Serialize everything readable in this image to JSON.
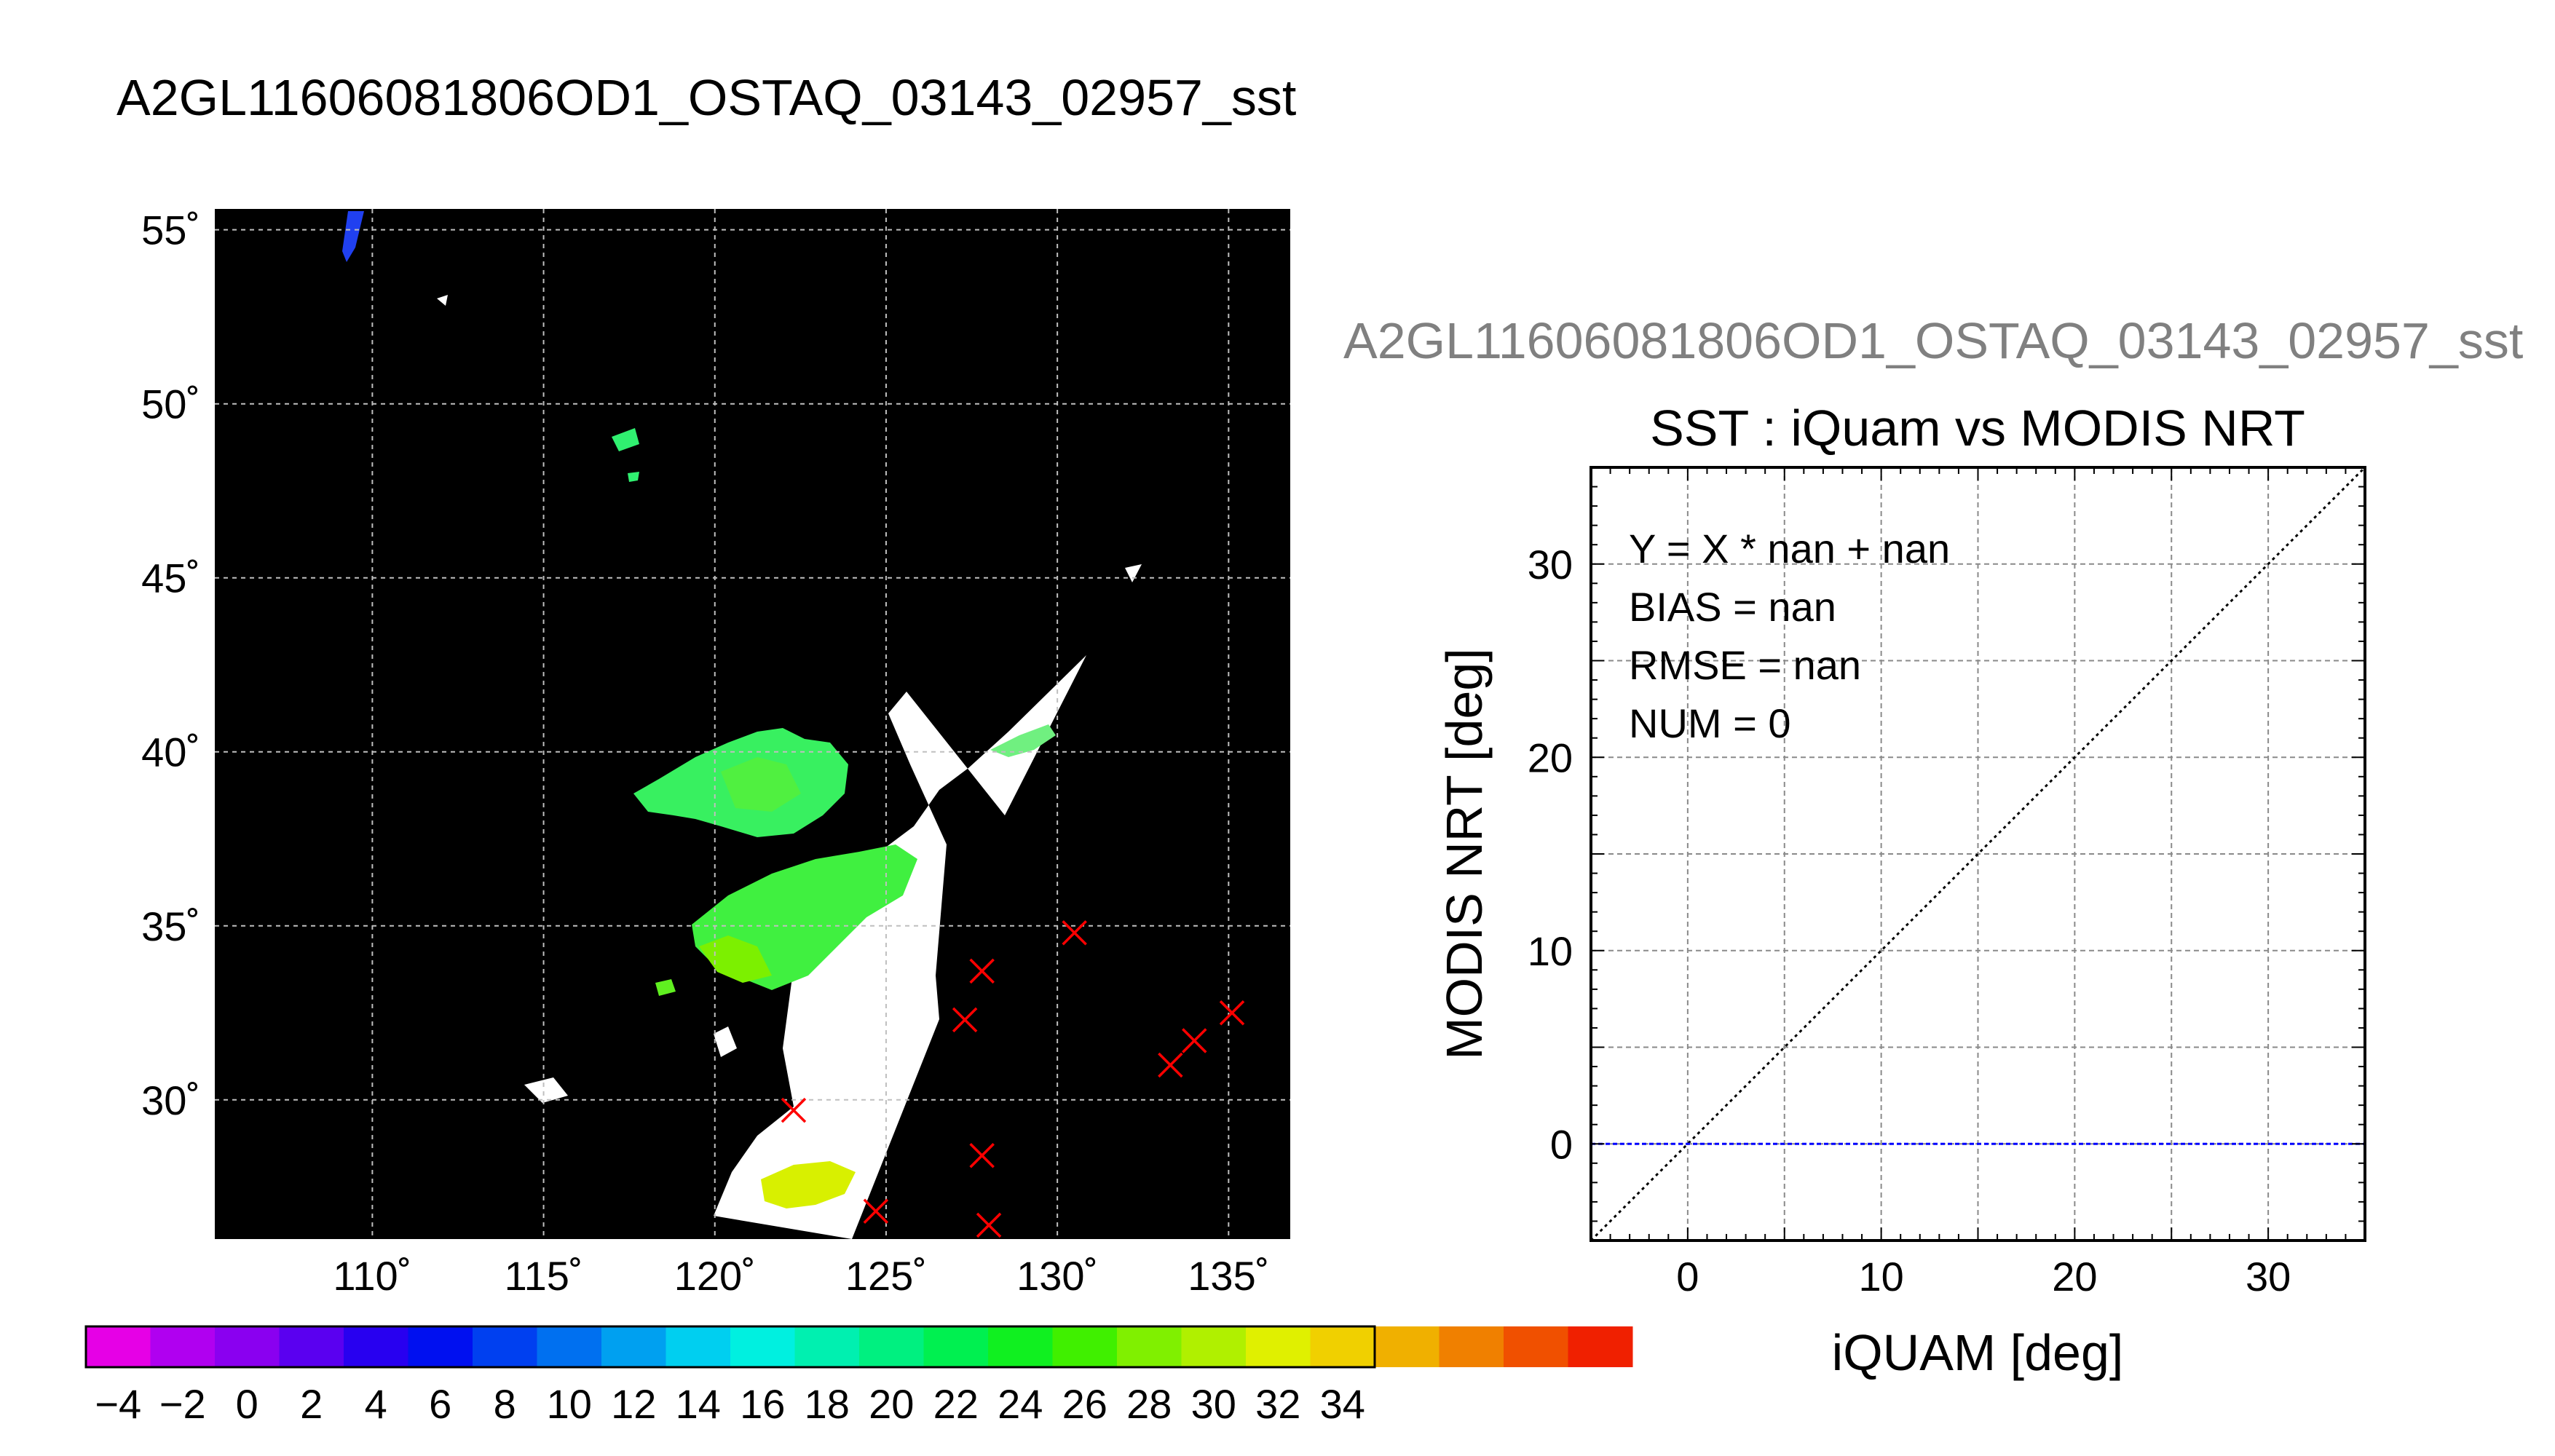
{
  "chart_data": [
    {
      "type": "heatmap",
      "title": "A2GL11606081806OD1_OSTAQ_03143_02957_sst",
      "x_ticks": [
        110,
        115,
        120,
        125,
        130,
        135
      ],
      "x_tick_labels": [
        "110˚",
        "115˚",
        "120˚",
        "125˚",
        "130˚",
        "135˚"
      ],
      "y_ticks": [
        30,
        35,
        40,
        45,
        50,
        55
      ],
      "y_tick_labels": [
        "30˚",
        "35˚",
        "40˚",
        "45˚",
        "50˚",
        "55˚"
      ],
      "xlim": [
        105.4,
        136.8
      ],
      "ylim": [
        26.0,
        55.6
      ],
      "grid": true,
      "background": "#000000",
      "swath_color": "#ffffff",
      "markers": {
        "symbol": "x",
        "color": "#ff0000",
        "points": [
          {
            "lon": 122.3,
            "lat": 29.7
          },
          {
            "lon": 124.7,
            "lat": 26.8
          },
          {
            "lon": 127.3,
            "lat": 32.3
          },
          {
            "lon": 127.8,
            "lat": 33.7
          },
          {
            "lon": 127.8,
            "lat": 28.4
          },
          {
            "lon": 128.0,
            "lat": 26.4
          },
          {
            "lon": 130.5,
            "lat": 34.8
          },
          {
            "lon": 133.3,
            "lat": 31.0
          },
          {
            "lon": 134.0,
            "lat": 31.7
          },
          {
            "lon": 135.1,
            "lat": 32.5
          }
        ]
      },
      "colorbar": {
        "min": -5,
        "max": 35,
        "step": 2,
        "tick_labels": [
          "−4",
          "−2",
          "0",
          "2",
          "4",
          "6",
          "8",
          "10",
          "12",
          "14",
          "16",
          "18",
          "20",
          "22",
          "24",
          "26",
          "28",
          "30",
          "32",
          "34"
        ],
        "colors": [
          "#e600e6",
          "#b000f0",
          "#8a00f0",
          "#5a00f0",
          "#2800f0",
          "#0010f0",
          "#0040f0",
          "#0070f0",
          "#00a0f0",
          "#00cff0",
          "#00f0e0",
          "#00f0b0",
          "#00f080",
          "#00f050",
          "#10f020",
          "#40f000",
          "#80f000",
          "#b0f000",
          "#e0f000",
          "#f0d000",
          "#f0b000",
          "#f08000",
          "#f05000",
          "#f02000"
        ]
      }
    },
    {
      "type": "scatter",
      "header": "A2GL11606081806OD1_OSTAQ_03143_02957_sst",
      "title": "SST : iQuam vs MODIS NRT",
      "xlabel": "iQUAM [deg]",
      "ylabel": "MODIS NRT [deg]",
      "xlim": [
        -5,
        35
      ],
      "ylim": [
        -5,
        35
      ],
      "x_ticks": [
        0,
        10,
        20,
        30
      ],
      "x_tick_labels": [
        "0",
        "10",
        "20",
        "30"
      ],
      "y_ticks": [
        0,
        10,
        20,
        30
      ],
      "y_tick_labels": [
        "0",
        "10",
        "20",
        "30"
      ],
      "grid": true,
      "annotations": [
        "Y = X * nan + nan",
        "BIAS = nan",
        "RMSE = nan",
        "NUM = 0"
      ],
      "reference_lines": [
        {
          "kind": "identity",
          "style": "dotted",
          "color": "#000000"
        },
        {
          "kind": "horizontal",
          "y": 0,
          "style": "dashed",
          "color": "#0000ff"
        }
      ],
      "series": [
        {
          "x": [],
          "y": []
        }
      ]
    }
  ]
}
